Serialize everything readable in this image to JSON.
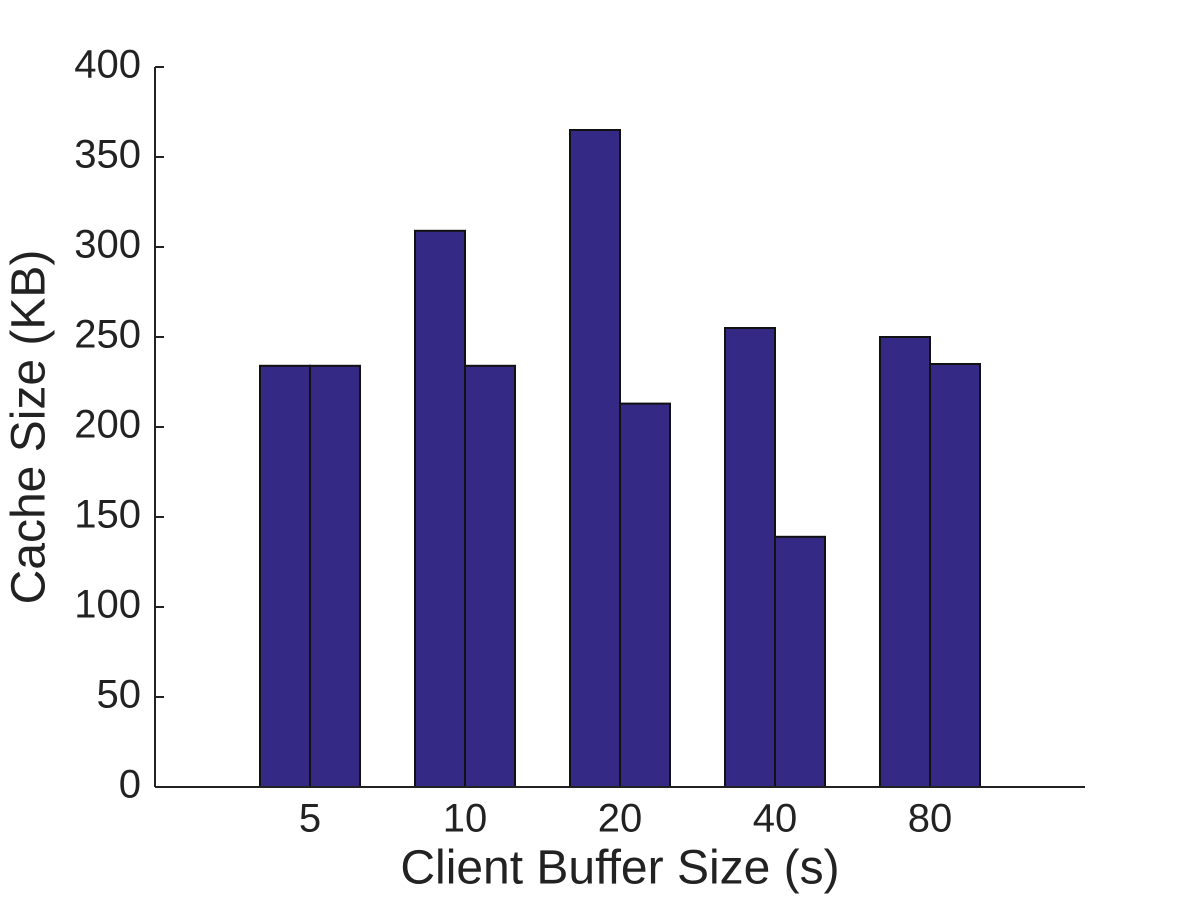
{
  "chart_data": {
    "type": "bar",
    "x_label": "Client Buffer Size (s)",
    "y_label": "Cache Size (KB)",
    "categories": [
      "5",
      "10",
      "20",
      "40",
      "80"
    ],
    "series": [
      {
        "color": "#342a85",
        "values": [
          234,
          309,
          365,
          255,
          250
        ]
      },
      {
        "color": "#342a85",
        "values": [
          234,
          234,
          213,
          139,
          235
        ]
      }
    ],
    "ylim": [
      0,
      400
    ],
    "yticks": [
      0,
      50,
      100,
      150,
      200,
      250,
      300,
      350,
      400
    ],
    "grid": false
  }
}
